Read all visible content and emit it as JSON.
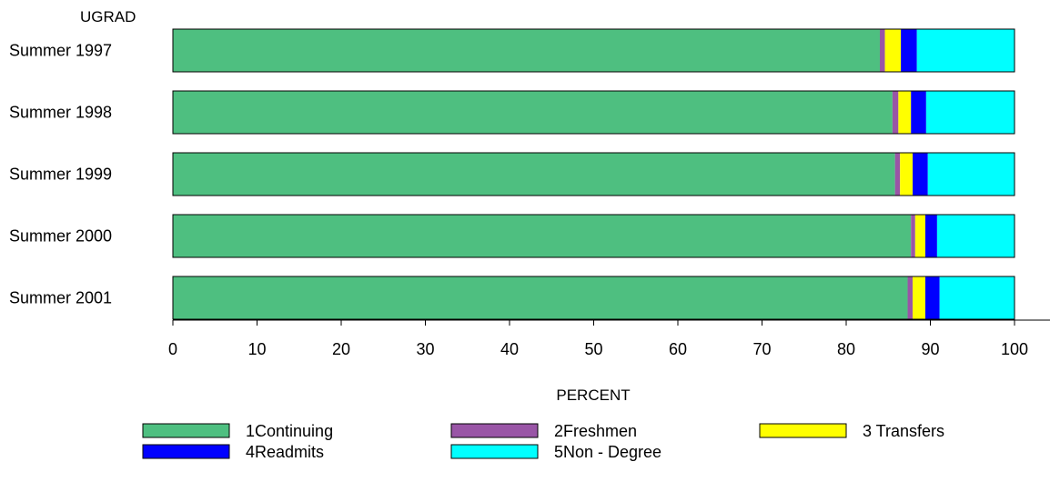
{
  "chart_data": {
    "type": "bar",
    "orientation": "horizontal",
    "stacked": true,
    "y_axis_title": "UGRAD",
    "xlabel": "PERCENT",
    "categories": [
      "Summer 1997",
      "Summer 1998",
      "Summer 1999",
      "Summer 2000",
      "Summer 2001"
    ],
    "xlim": [
      0,
      100
    ],
    "xticks": [
      "0",
      "10",
      "20",
      "30",
      "40",
      "50",
      "60",
      "70",
      "80",
      "90",
      "100"
    ],
    "series": [
      {
        "name": "1Continuing",
        "color": "#4ebf80",
        "values": [
          84.0,
          85.5,
          85.8,
          87.7,
          87.3
        ]
      },
      {
        "name": "2Freshmen",
        "color": "#9955a6",
        "values": [
          0.6,
          0.7,
          0.6,
          0.5,
          0.6
        ]
      },
      {
        "name": "3 Transfers",
        "color": "#ffff00",
        "values": [
          1.9,
          1.5,
          1.5,
          1.2,
          1.5
        ]
      },
      {
        "name": "4Readmits",
        "color": "#0000ff",
        "values": [
          1.9,
          1.8,
          1.8,
          1.4,
          1.7
        ]
      },
      {
        "name": "5Non - Degree",
        "color": "#00ffff",
        "values": [
          11.6,
          10.5,
          10.3,
          9.2,
          8.9
        ]
      }
    ],
    "grid": false,
    "legend_position": "bottom"
  }
}
